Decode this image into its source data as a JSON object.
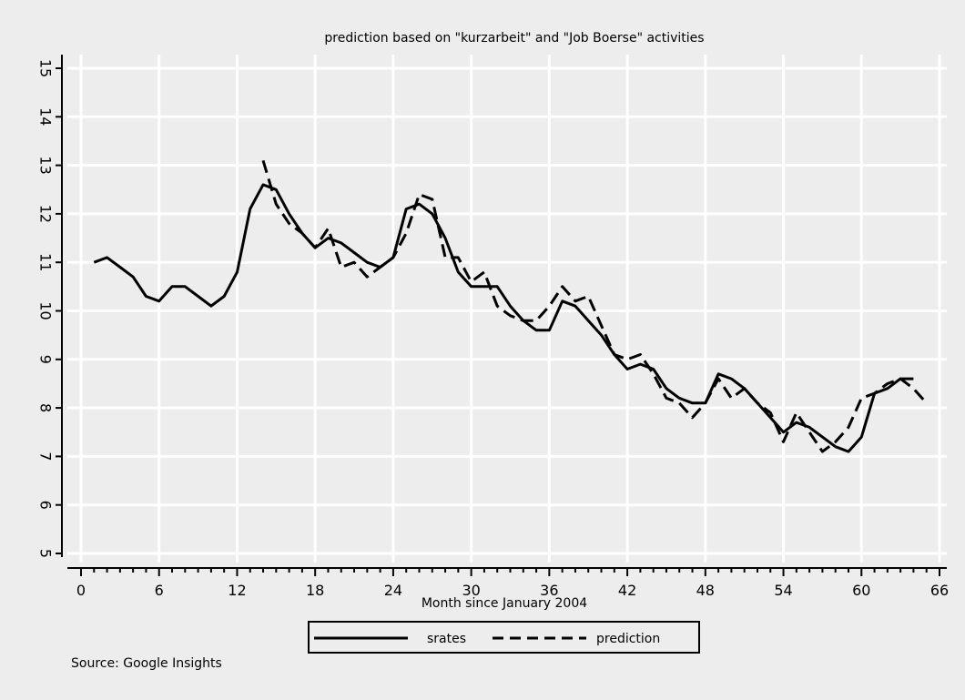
{
  "chart_data": {
    "type": "line",
    "title": "prediction based on \"kurzarbeit\"   and \"Job Boerse\" activities",
    "xlabel": "Month since January 2004",
    "ylabel": "",
    "xlim": [
      0,
      66
    ],
    "ylim": [
      5,
      15
    ],
    "xticks": [
      0,
      6,
      12,
      18,
      24,
      30,
      36,
      42,
      48,
      54,
      60,
      66
    ],
    "yticks": [
      5,
      6,
      7,
      8,
      9,
      10,
      11,
      12,
      13,
      14,
      15
    ],
    "grid": true,
    "legend_position": "bottom",
    "source_note": "Source: Google Insights",
    "series": [
      {
        "name": "srates",
        "style": "solid",
        "x": [
          1,
          2,
          3,
          4,
          5,
          6,
          7,
          8,
          9,
          10,
          11,
          12,
          13,
          14,
          15,
          16,
          17,
          18,
          19,
          20,
          21,
          22,
          23,
          24,
          25,
          26,
          27,
          28,
          29,
          30,
          31,
          32,
          33,
          34,
          35,
          36,
          37,
          38,
          39,
          40,
          41,
          42,
          43,
          44,
          45,
          46,
          47,
          48,
          49,
          50,
          51,
          52,
          53,
          54,
          55,
          56,
          57,
          58,
          59,
          60,
          61,
          62,
          63,
          64
        ],
        "values": [
          11.0,
          11.1,
          10.9,
          10.7,
          10.3,
          10.2,
          10.5,
          10.5,
          10.3,
          10.1,
          10.3,
          10.8,
          12.1,
          12.6,
          12.5,
          12.0,
          11.6,
          11.3,
          11.5,
          11.4,
          11.2,
          11.0,
          10.9,
          11.1,
          12.1,
          12.2,
          12.0,
          11.5,
          10.8,
          10.5,
          10.5,
          10.5,
          10.1,
          9.8,
          9.6,
          9.6,
          10.2,
          10.1,
          9.8,
          9.5,
          9.1,
          8.8,
          8.9,
          8.8,
          8.4,
          8.2,
          8.1,
          8.1,
          8.7,
          8.6,
          8.4,
          8.1,
          7.8,
          7.5,
          7.7,
          7.6,
          7.4,
          7.2,
          7.1,
          7.4,
          8.3,
          8.4,
          8.6,
          8.6
        ]
      },
      {
        "name": "prediction",
        "style": "dashed",
        "x": [
          14,
          15,
          16,
          17,
          18,
          19,
          20,
          21,
          22,
          23,
          24,
          25,
          26,
          27,
          28,
          29,
          30,
          31,
          32,
          33,
          34,
          35,
          36,
          37,
          38,
          39,
          40,
          41,
          42,
          43,
          44,
          45,
          46,
          47,
          48,
          49,
          50,
          51,
          52,
          53,
          54,
          55,
          56,
          57,
          58,
          59,
          60,
          61,
          62,
          63,
          64,
          65
        ],
        "values": [
          13.1,
          12.2,
          11.8,
          11.6,
          11.3,
          11.7,
          10.9,
          11.0,
          10.7,
          10.9,
          11.1,
          11.6,
          12.4,
          12.3,
          11.1,
          11.1,
          10.6,
          10.8,
          10.1,
          9.9,
          9.8,
          9.8,
          10.1,
          10.5,
          10.2,
          10.3,
          9.7,
          9.1,
          9.0,
          9.1,
          8.7,
          8.2,
          8.1,
          7.8,
          8.1,
          8.6,
          8.2,
          8.4,
          8.1,
          7.9,
          7.3,
          7.9,
          7.5,
          7.1,
          7.3,
          7.6,
          8.2,
          8.3,
          8.5,
          8.6,
          8.4,
          8.1
        ]
      }
    ]
  }
}
